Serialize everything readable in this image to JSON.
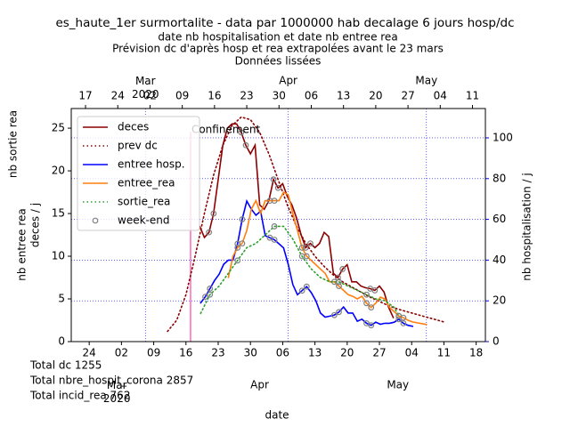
{
  "chart_data": {
    "type": "line",
    "title": "es_haute_1er surmortalite - data par 1000000 hab decalage 6 jours hosp/dc",
    "subtitle": "date nb hospitalisation et date nb entree rea",
    "subtitle_color": "#ff7f0e",
    "notes": [
      "Prévision dc d'après hosp et rea extrapolées avant le 23 mars",
      "Données lissées"
    ],
    "xlabel": "date",
    "xlabel_color": "#8b0000",
    "ylabels": [
      {
        "text": "nb sortie rea",
        "color": "#2ca02c"
      },
      {
        "text": "nb entree rea",
        "color": "#ff7f0e"
      },
      {
        "text": "deces / j",
        "color": "#8b0000"
      }
    ],
    "y2label": "nb hospitalisation / j",
    "y2color": "#0000ff",
    "xlim": [
      51.1,
      141.0
    ],
    "xticks": [
      {
        "value": 55,
        "label": "24"
      },
      {
        "value": 62,
        "label": "02"
      },
      {
        "value": 69,
        "label": "09"
      },
      {
        "value": 76,
        "label": "16"
      },
      {
        "value": 83,
        "label": "23"
      },
      {
        "value": 90,
        "label": "30"
      },
      {
        "value": 97,
        "label": "06"
      },
      {
        "value": 104,
        "label": "13"
      },
      {
        "value": 111,
        "label": "20"
      },
      {
        "value": 118,
        "label": "27"
      },
      {
        "value": 125,
        "label": "04"
      },
      {
        "value": 132,
        "label": "11"
      },
      {
        "value": 139,
        "label": "18"
      }
    ],
    "x_month_ticks": [
      {
        "value": 61,
        "label": "Mar\n2020"
      },
      {
        "value": 92,
        "label": "Apr"
      },
      {
        "value": 122,
        "label": "May"
      }
    ],
    "top_xlim": [
      44.9,
      134.8
    ],
    "top_xticks": [
      {
        "value": 48,
        "label": "17"
      },
      {
        "value": 55,
        "label": "24"
      },
      {
        "value": 62,
        "label": "02"
      },
      {
        "value": 69,
        "label": "09"
      },
      {
        "value": 76,
        "label": "16"
      },
      {
        "value": 83,
        "label": "23"
      },
      {
        "value": 90,
        "label": "30"
      },
      {
        "value": 97,
        "label": "06"
      },
      {
        "value": 104,
        "label": "13"
      },
      {
        "value": 111,
        "label": "20"
      },
      {
        "value": 118,
        "label": "27"
      },
      {
        "value": 125,
        "label": "04"
      },
      {
        "value": 132,
        "label": "11"
      }
    ],
    "top_month_ticks": [
      {
        "value": 61,
        "label": "Mar\n2020"
      },
      {
        "value": 92,
        "label": "Apr"
      },
      {
        "value": 122,
        "label": "May"
      }
    ],
    "ylim": [
      0,
      27.3
    ],
    "yticks": [
      0,
      5,
      10,
      15,
      20,
      25
    ],
    "y2lim": [
      0,
      114.4
    ],
    "y2ticks": [
      0,
      20,
      40,
      60,
      80,
      100
    ],
    "grid": true,
    "legend": "upper left",
    "annotation": {
      "text": "Confinement",
      "x": 77,
      "color": "#ff69b4"
    },
    "totals": [
      "Total dc 1255",
      "Total nbre_hospit_corona 2857",
      "Total incid_rea 762"
    ],
    "series": [
      {
        "name": "deces",
        "color": "#8b0000",
        "style": "solid",
        "axis": "y",
        "xaxis": "bottom",
        "x": [
          79,
          80,
          81,
          82,
          83,
          84,
          85,
          86,
          87,
          88,
          89,
          90,
          91,
          92,
          93,
          94,
          95,
          96,
          97,
          98,
          99,
          100,
          101,
          102,
          103,
          104,
          105,
          106,
          107,
          108,
          109,
          110,
          111,
          112,
          113,
          114,
          115,
          116,
          117,
          118,
          119,
          120,
          121
        ],
        "values": [
          13.5,
          12.2,
          12.8,
          15,
          19,
          23,
          25,
          25.5,
          25.5,
          24.5,
          23,
          22,
          23,
          16,
          15.5,
          16.5,
          19,
          18,
          18.5,
          17,
          16,
          14.5,
          12.5,
          11,
          11.5,
          11,
          11.5,
          12.8,
          12.3,
          8,
          7.5,
          8.5,
          9,
          7,
          7,
          6.5,
          6.3,
          6.2,
          6,
          6.5,
          5.8,
          4,
          2.8
        ]
      },
      {
        "name": "prev dc",
        "color": "#8b0000",
        "style": "dotted",
        "axis": "y",
        "xaxis": "bottom",
        "x": [
          72,
          74,
          76,
          78,
          80,
          82,
          84,
          86,
          88,
          90,
          92,
          94,
          96,
          98,
          100,
          102,
          104,
          106,
          108,
          110,
          112,
          114,
          116,
          118,
          120,
          122,
          124,
          126,
          128,
          130,
          132
        ],
        "values": [
          1.2,
          2.5,
          5.5,
          10,
          15,
          19.5,
          23,
          25.3,
          26.3,
          26,
          24.5,
          22,
          19,
          16,
          13.5,
          11.5,
          10,
          8.8,
          7.8,
          7,
          6.4,
          5.8,
          5.2,
          4.7,
          4.2,
          3.8,
          3.5,
          3.2,
          2.9,
          2.6,
          2.3
        ]
      },
      {
        "name": "entree hosp.",
        "color": "#0000ff",
        "style": "solid",
        "axis": "y2",
        "xaxis": "top",
        "x": [
          73,
          74,
          75,
          76,
          77,
          78,
          79,
          80,
          81,
          82,
          83,
          84,
          85,
          86,
          87,
          88,
          89,
          90,
          91,
          92,
          93,
          94,
          95,
          96,
          97,
          98,
          99,
          100,
          101,
          102,
          103,
          104,
          105,
          106,
          107,
          108,
          109,
          110,
          111,
          112,
          113,
          114,
          115,
          116,
          117,
          118,
          119
        ],
        "values": [
          19,
          22,
          26,
          30,
          33,
          38,
          40,
          40,
          48,
          60,
          69,
          65,
          62,
          64,
          52,
          51,
          50,
          48,
          46,
          38,
          28,
          23,
          25,
          27,
          24,
          20,
          14,
          12,
          12.5,
          13,
          14.5,
          17,
          14,
          14,
          10,
          11,
          9,
          8,
          9.5,
          8.5,
          9,
          9,
          9.5,
          11,
          9,
          8,
          7.5
        ]
      },
      {
        "name": "entree_rea",
        "color": "#ff7f0e",
        "style": "solid",
        "axis": "y",
        "xaxis": "top",
        "x": [
          79,
          80,
          81,
          82,
          83,
          84,
          85,
          86,
          87,
          88,
          89,
          90,
          91,
          92,
          93,
          94,
          95,
          96,
          97,
          98,
          99,
          100,
          101,
          102,
          103,
          104,
          105,
          106,
          107,
          108,
          109,
          110,
          111,
          112,
          113,
          114,
          115,
          116,
          117,
          118,
          119,
          120,
          121,
          122
        ],
        "values": [
          7.5,
          10,
          11,
          11.5,
          13,
          15.5,
          16.5,
          15,
          16.5,
          16.5,
          16.5,
          16.5,
          17.5,
          17.2,
          15,
          13,
          11,
          10,
          9.5,
          9,
          8.5,
          8,
          7,
          7,
          6.5,
          6,
          5.5,
          5.3,
          5,
          5.3,
          4.5,
          4,
          4.5,
          5.2,
          5,
          4,
          3.5,
          3,
          2.8,
          2.5,
          2.3,
          2.2,
          2.1,
          2.0
        ]
      },
      {
        "name": "sortie_rea",
        "color": "#2ca02c",
        "style": "dotted",
        "axis": "y",
        "xaxis": "top",
        "x": [
          73,
          75,
          77,
          79,
          81,
          83,
          85,
          87,
          89,
          91,
          93,
          95,
          97,
          99,
          101,
          103,
          105,
          107,
          109,
          111,
          113,
          115,
          116
        ],
        "values": [
          3.3,
          5.5,
          6.5,
          8,
          9.5,
          11,
          11.5,
          12.5,
          13.5,
          13.5,
          12,
          10,
          8.5,
          7.5,
          7,
          7,
          6.5,
          6,
          5.5,
          5,
          4.8,
          4,
          3
        ]
      },
      {
        "name": "week-end",
        "color": "#808080",
        "style": "markers"
      }
    ]
  }
}
